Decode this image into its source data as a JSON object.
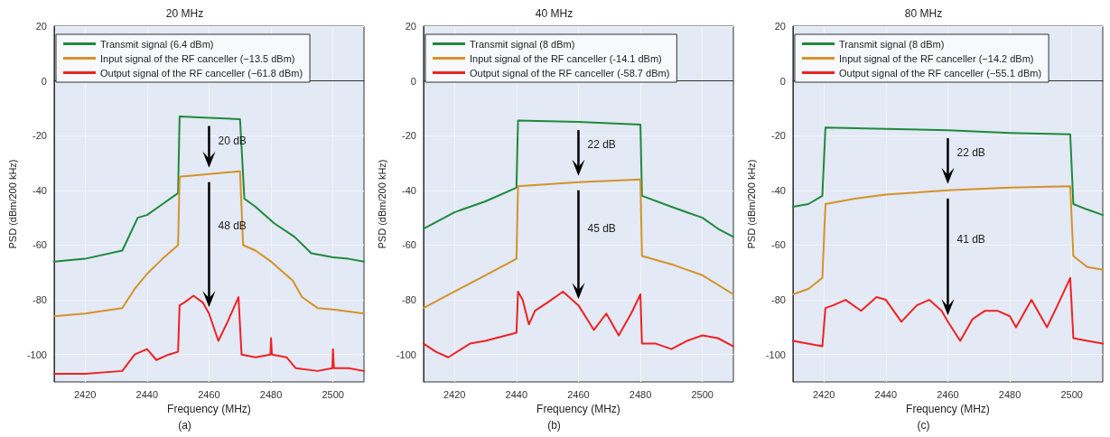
{
  "chart_data": [
    {
      "type": "line",
      "title": "20 MHz",
      "subtitle": "(a)",
      "xlabel": "Frequency (MHz)",
      "ylabel": "PSD (dBm/200 kHz)",
      "xlim": [
        2410,
        2510
      ],
      "ylim": [
        -110,
        20
      ],
      "xticks": [
        2420,
        2440,
        2460,
        2480,
        2500
      ],
      "yticks": [
        -100,
        -80,
        -60,
        -40,
        -20,
        0,
        20
      ],
      "grid": true,
      "legend": "top left",
      "marker": "none",
      "line_style": "solid",
      "annotations": [
        "20 dB",
        "48 dB"
      ],
      "series": [
        {
          "name": "Transmit signal (6.4 dBm)",
          "color": "#1e8a3c",
          "x": [
            2410,
            2420,
            2432,
            2437,
            2440,
            2445,
            2450,
            2450.5,
            2460,
            2470,
            2471.4,
            2475,
            2481,
            2487.6,
            2493,
            2500,
            2505,
            2510
          ],
          "values": [
            -66,
            -65,
            -62,
            -50,
            -49,
            -45,
            -41,
            -13,
            -13.5,
            -14,
            -43,
            -46,
            -52,
            -57,
            -63,
            -64.5,
            -65,
            -66
          ]
        },
        {
          "name": "Input signal of the RF canceller (−13.5 dBm)",
          "color": "#d4922a",
          "x": [
            2410,
            2420,
            2432,
            2436,
            2440,
            2445,
            2450,
            2450.5,
            2460,
            2470,
            2471,
            2475,
            2480,
            2487,
            2490,
            2495,
            2500,
            2510
          ],
          "values": [
            -86,
            -85,
            -83,
            -76,
            -70.5,
            -65,
            -60,
            -35,
            -34,
            -33,
            -60,
            -62,
            -66,
            -73,
            -79,
            -83,
            -83.5,
            -85
          ]
        },
        {
          "name": "Output signal of the RF canceller (−61.8 dBm)",
          "color": "#ee2222",
          "x": [
            2410,
            2420,
            2432,
            2436,
            2440,
            2443,
            2447,
            2450,
            2450.5,
            2452,
            2455,
            2458,
            2460,
            2463,
            2466,
            2469.5,
            2470.5,
            2475,
            2479.8,
            2480,
            2480.3,
            2485,
            2488,
            2495,
            2499.8,
            2500,
            2500.3,
            2505,
            2510
          ],
          "values": [
            -107,
            -107,
            -106,
            -100,
            -98,
            -102,
            -100,
            -99,
            -82,
            -81,
            -78.5,
            -81,
            -85,
            -95,
            -88,
            -79,
            -100,
            -101,
            -100,
            -94,
            -100,
            -101,
            -105,
            -106,
            -105,
            -98,
            -105,
            -105,
            -106
          ]
        }
      ]
    },
    {
      "type": "line",
      "title": "40 MHz",
      "subtitle": "(b)",
      "xlabel": "Frequency (MHz)",
      "ylabel": "PSD (dBm/200 kHz)",
      "xlim": [
        2410,
        2510
      ],
      "ylim": [
        -110,
        20
      ],
      "xticks": [
        2420,
        2440,
        2460,
        2480,
        2500
      ],
      "yticks": [
        -100,
        -80,
        -60,
        -40,
        -20,
        0,
        20
      ],
      "grid": true,
      "legend": "top left",
      "marker": "none",
      "line_style": "solid",
      "annotations": [
        "22 dB",
        "45 dB"
      ],
      "series": [
        {
          "name": "Transmit signal (8 dBm)",
          "color": "#1e8a3c",
          "x": [
            2410,
            2420,
            2430,
            2440,
            2440.5,
            2460,
            2480,
            2480.5,
            2490,
            2500,
            2505,
            2510
          ],
          "values": [
            -54,
            -48,
            -44,
            -39,
            -14.5,
            -15,
            -16,
            -42,
            -46,
            -50,
            -54,
            -57
          ]
        },
        {
          "name": "Input signal of the RF canceller (-14.1 dBm)",
          "color": "#d4922a",
          "x": [
            2410,
            2420,
            2430,
            2440,
            2440.5,
            2460,
            2480,
            2480.5,
            2490,
            2500,
            2510
          ],
          "values": [
            -83,
            -77,
            -71,
            -65,
            -38.5,
            -37,
            -36,
            -64,
            -67,
            -71,
            -78
          ]
        },
        {
          "name": "Output signal of the RF canceller (-58.7 dBm)",
          "color": "#ee2222",
          "x": [
            2410,
            2414,
            2418,
            2425,
            2430,
            2440,
            2440.5,
            2442,
            2444,
            2446,
            2450,
            2455,
            2460,
            2465,
            2469,
            2473,
            2477,
            2480,
            2480.5,
            2485,
            2490,
            2495,
            2500,
            2505,
            2510
          ],
          "values": [
            -96,
            -99,
            -101,
            -96,
            -95,
            -92,
            -77,
            -80,
            -89,
            -84,
            -81,
            -77,
            -82,
            -91,
            -85,
            -93,
            -85,
            -78,
            -96,
            -96,
            -98,
            -95,
            -93,
            -94,
            -97
          ]
        }
      ]
    },
    {
      "type": "line",
      "title": "80 MHz",
      "subtitle": "(c)",
      "xlabel": "Frequency (MHz)",
      "ylabel": "PSD (dBm/200 kHz)",
      "xlim": [
        2410,
        2510
      ],
      "ylim": [
        -110,
        20
      ],
      "xticks": [
        2420,
        2440,
        2460,
        2480,
        2500
      ],
      "yticks": [
        -100,
        -80,
        -60,
        -40,
        -20,
        0,
        20
      ],
      "grid": true,
      "legend": "top left",
      "marker": "none",
      "line_style": "solid",
      "annotations": [
        "22 dB",
        "41 dB"
      ],
      "series": [
        {
          "name": "Transmit signal (8 dBm)",
          "color": "#1e8a3c",
          "x": [
            2410,
            2415,
            2419.5,
            2420.5,
            2440,
            2460,
            2480,
            2499.5,
            2500.5,
            2505,
            2510
          ],
          "values": [
            -46,
            -45,
            -42,
            -17,
            -17.5,
            -18,
            -19,
            -19.5,
            -45,
            -47,
            -49
          ]
        },
        {
          "name": "Input signal of the RF canceller (−14.2 dBm)",
          "color": "#d4922a",
          "x": [
            2410,
            2415,
            2419.5,
            2420.5,
            2430,
            2440,
            2460,
            2480,
            2499.5,
            2500.5,
            2505,
            2510
          ],
          "values": [
            -78,
            -76,
            -72,
            -45,
            -43,
            -41.5,
            -40,
            -39,
            -38.5,
            -64,
            -68,
            -69
          ]
        },
        {
          "name": "Output signal of the RF canceller (−55.1 dBm)",
          "color": "#ee2222",
          "x": [
            2410,
            2419.5,
            2420.5,
            2423,
            2427,
            2432,
            2437,
            2440,
            2445,
            2450,
            2454,
            2458,
            2460,
            2464,
            2468,
            2472,
            2476,
            2480,
            2482,
            2487,
            2492,
            2495,
            2499.5,
            2500.5,
            2505,
            2510
          ],
          "values": [
            -95,
            -97,
            -83,
            -82,
            -80,
            -84,
            -79,
            -80,
            -88,
            -82,
            -80,
            -84,
            -88,
            -95,
            -87,
            -84,
            -84,
            -86,
            -90,
            -80,
            -90,
            -83,
            -72,
            -94,
            -95,
            -96
          ]
        }
      ]
    }
  ]
}
